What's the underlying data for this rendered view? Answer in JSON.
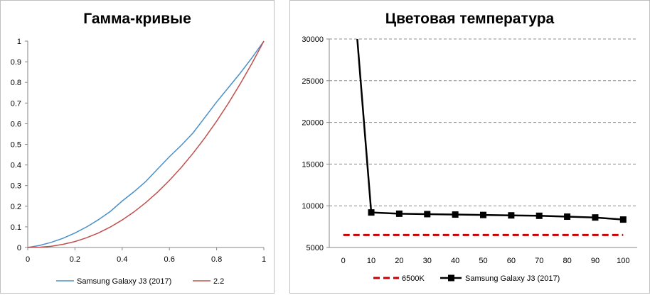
{
  "chart_data": [
    {
      "type": "line",
      "title": "Гамма-кривые",
      "xlabel": "",
      "ylabel": "",
      "xlim": [
        0,
        1
      ],
      "ylim": [
        0,
        1
      ],
      "x_ticks": [
        "0",
        "0.2",
        "0.4",
        "0.6",
        "0.8",
        "1"
      ],
      "y_ticks": [
        "0",
        "0.1",
        "0.2",
        "0.3",
        "0.4",
        "0.5",
        "0.6",
        "0.7",
        "0.8",
        "0.9",
        "1"
      ],
      "grid": false,
      "legend_position": "bottom",
      "series": [
        {
          "name": "Samsung Galaxy J3 (2017)",
          "color": "#4a90c8",
          "x": [
            0,
            0.05,
            0.1,
            0.15,
            0.2,
            0.25,
            0.3,
            0.35,
            0.4,
            0.45,
            0.5,
            0.55,
            0.6,
            0.65,
            0.7,
            0.75,
            0.8,
            0.85,
            0.9,
            0.95,
            1
          ],
          "y": [
            0,
            0.01,
            0.025,
            0.045,
            0.07,
            0.1,
            0.135,
            0.175,
            0.225,
            0.27,
            0.32,
            0.38,
            0.44,
            0.495,
            0.555,
            0.63,
            0.705,
            0.775,
            0.845,
            0.92,
            1
          ]
        },
        {
          "name": "2.2",
          "color": "#c0504d",
          "x": [
            0,
            0.05,
            0.1,
            0.15,
            0.2,
            0.25,
            0.3,
            0.35,
            0.4,
            0.45,
            0.5,
            0.55,
            0.6,
            0.65,
            0.7,
            0.75,
            0.8,
            0.85,
            0.9,
            0.95,
            1
          ],
          "y": [
            0,
            0.0014,
            0.0063,
            0.0154,
            0.029,
            0.0474,
            0.0707,
            0.0993,
            0.1332,
            0.1726,
            0.2176,
            0.2683,
            0.325,
            0.3877,
            0.4563,
            0.5314,
            0.6121,
            0.6994,
            0.7932,
            0.8932,
            1
          ]
        }
      ]
    },
    {
      "type": "line",
      "title": "Цветовая температура",
      "xlabel": "",
      "ylabel": "",
      "xlim": [
        -5,
        105
      ],
      "ylim": [
        5000,
        30000
      ],
      "x_ticks": [
        "0",
        "10",
        "20",
        "30",
        "40",
        "50",
        "60",
        "70",
        "80",
        "90",
        "100"
      ],
      "y_ticks": [
        "5000",
        "10000",
        "15000",
        "20000",
        "25000",
        "30000"
      ],
      "grid": true,
      "legend_position": "bottom",
      "series": [
        {
          "name": "6500K",
          "color": "#cc0000",
          "style": "dashed",
          "x": [
            0,
            10,
            20,
            30,
            40,
            50,
            60,
            70,
            80,
            90,
            100
          ],
          "y": [
            6500,
            6500,
            6500,
            6500,
            6500,
            6500,
            6500,
            6500,
            6500,
            6500,
            6500
          ]
        },
        {
          "name": "Samsung Galaxy J3 (2017)",
          "color": "#000000",
          "style": "solid-square-markers",
          "x": [
            5,
            10,
            20,
            30,
            40,
            50,
            60,
            70,
            80,
            90,
            100
          ],
          "y": [
            30000,
            9200,
            9050,
            9000,
            8950,
            8900,
            8850,
            8800,
            8700,
            8600,
            8350
          ],
          "markers_from_index": 1
        }
      ]
    }
  ]
}
